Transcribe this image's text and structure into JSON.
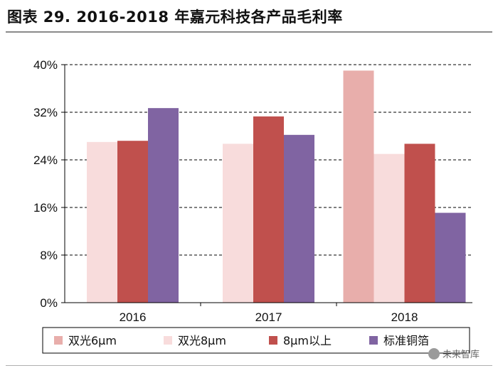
{
  "page": {
    "title": "图表 29. 2016-2018 年嘉元科技各产品毛利率",
    "watermark": "未来智库"
  },
  "chart_data": {
    "type": "bar",
    "categories": [
      "2016",
      "2017",
      "2018"
    ],
    "series": [
      {
        "name": "双光6μm",
        "color": "#e8aeab",
        "values": [
          null,
          null,
          0.39
        ]
      },
      {
        "name": "双光8μm",
        "color": "#f8dcdc",
        "values": [
          0.27,
          0.267,
          0.25
        ]
      },
      {
        "name": "8μm以上",
        "color": "#c0504d",
        "values": [
          0.272,
          0.313,
          0.267
        ]
      },
      {
        "name": "标准铜箔",
        "color": "#8064a2",
        "values": [
          0.327,
          0.282,
          0.151
        ]
      }
    ],
    "ylim": [
      0,
      0.4
    ],
    "yticks": [
      0,
      0.08,
      0.16,
      0.24,
      0.32,
      0.4
    ],
    "ytick_labels": [
      "0%",
      "8%",
      "16%",
      "24%",
      "32%",
      "40%"
    ],
    "grid": "horizontal dashed",
    "legend_position": "bottom",
    "xlabel": "",
    "ylabel": ""
  }
}
